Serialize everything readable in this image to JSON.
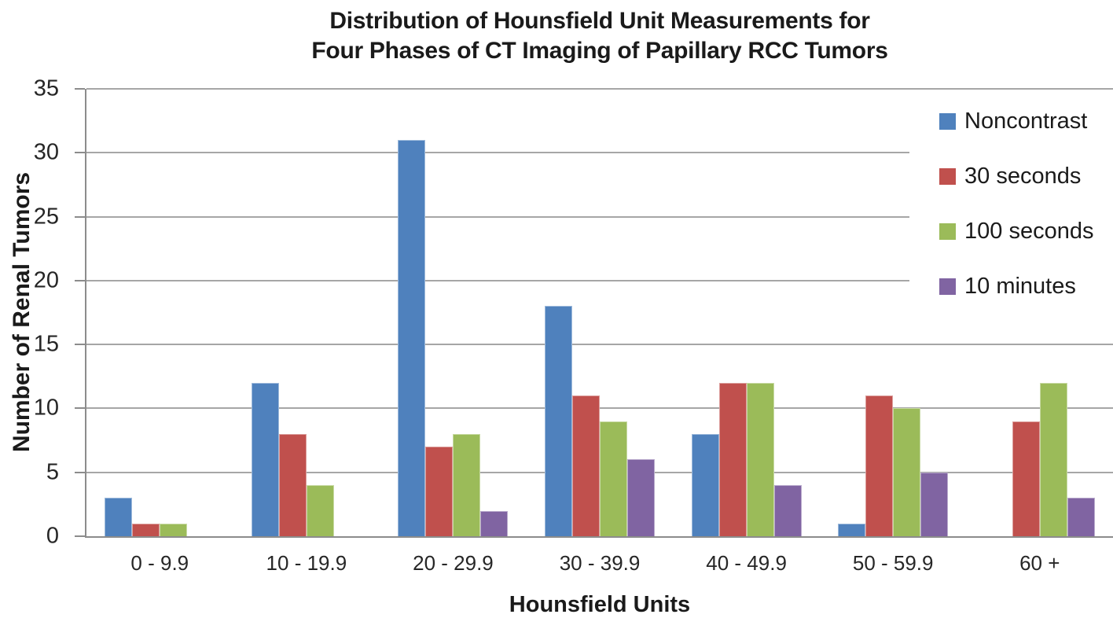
{
  "chart_data": {
    "type": "bar",
    "title_line1": "Distribution of Hounsfield Unit Measurements for",
    "title_line2": "Four Phases of CT Imaging of Papillary RCC Tumors",
    "xlabel": "Hounsfield Units",
    "ylabel": "Number of Renal Tumors",
    "categories": [
      "0 - 9.9",
      "10 - 19.9",
      "20 - 29.9",
      "30 - 39.9",
      "40 - 49.9",
      "50 - 59.9",
      "60 +"
    ],
    "series": [
      {
        "name": "Noncontrast",
        "color": "#4F81BD",
        "values": [
          3,
          12,
          31,
          18,
          8,
          1,
          0
        ]
      },
      {
        "name": "30 seconds",
        "color": "#C0504D",
        "values": [
          1,
          8,
          7,
          11,
          12,
          11,
          9
        ]
      },
      {
        "name": "100 seconds",
        "color": "#9BBB59",
        "values": [
          1,
          4,
          8,
          9,
          12,
          10,
          12
        ]
      },
      {
        "name": "10 minutes",
        "color": "#8064A2",
        "values": [
          0,
          0,
          2,
          6,
          4,
          5,
          3
        ]
      }
    ],
    "ylim": [
      0,
      35
    ],
    "ytick_step": 5,
    "grid": true,
    "legend_position": "upper-right-overlay",
    "style_colors": {
      "gridline": "#A6A6A6",
      "axis": "#8C8C8C",
      "title_text": "#1A1A1A",
      "tick_text": "#262626"
    }
  }
}
